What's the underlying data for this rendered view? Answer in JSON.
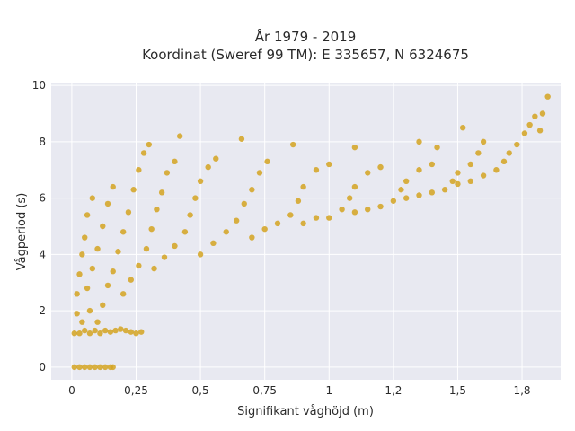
{
  "chart_data": {
    "type": "scatter",
    "title_line1": "År 1979 - 2019",
    "title_line2": "Koordinat (Sweref 99 TM): E 335657, N 6324675",
    "xlabel": "Signifikant våghöjd (m)",
    "ylabel": "Vågperiod (s)",
    "xlim": [
      -0.08,
      1.9
    ],
    "ylim": [
      -0.45,
      10.1
    ],
    "x_ticks": [
      {
        "value": 0,
        "label": "0"
      },
      {
        "value": 0.25,
        "label": "0,25"
      },
      {
        "value": 0.5,
        "label": "0,5"
      },
      {
        "value": 0.75,
        "label": "0,75"
      },
      {
        "value": 1.0,
        "label": "1"
      },
      {
        "value": 1.25,
        "label": "1,2"
      },
      {
        "value": 1.5,
        "label": "1,5"
      },
      {
        "value": 1.75,
        "label": "1,8"
      }
    ],
    "y_ticks": [
      {
        "value": 0,
        "label": "0"
      },
      {
        "value": 2,
        "label": "2"
      },
      {
        "value": 4,
        "label": "4"
      },
      {
        "value": 6,
        "label": "6"
      },
      {
        "value": 8,
        "label": "8"
      },
      {
        "value": 10,
        "label": "10"
      }
    ],
    "grid": true,
    "colors": {
      "background": "#e8e9f1",
      "grid": "#ffffff",
      "marker": "#d4a321"
    },
    "series": [
      {
        "points": [
          [
            0.01,
            0.0
          ],
          [
            0.03,
            0.0
          ],
          [
            0.05,
            0.0
          ],
          [
            0.07,
            0.0
          ],
          [
            0.09,
            0.0
          ],
          [
            0.11,
            0.0
          ],
          [
            0.13,
            0.0
          ],
          [
            0.15,
            0.0
          ],
          [
            0.16,
            0.0
          ],
          [
            0.01,
            1.2
          ],
          [
            0.02,
            1.9
          ],
          [
            0.02,
            2.6
          ],
          [
            0.03,
            3.3
          ],
          [
            0.04,
            4.0
          ],
          [
            0.05,
            4.6
          ],
          [
            0.06,
            5.4
          ],
          [
            0.08,
            6.0
          ],
          [
            0.03,
            1.2
          ],
          [
            0.05,
            1.3
          ],
          [
            0.07,
            1.2
          ],
          [
            0.09,
            1.3
          ],
          [
            0.11,
            1.2
          ],
          [
            0.13,
            1.3
          ],
          [
            0.15,
            1.25
          ],
          [
            0.17,
            1.3
          ],
          [
            0.19,
            1.35
          ],
          [
            0.21,
            1.3
          ],
          [
            0.23,
            1.25
          ],
          [
            0.25,
            1.2
          ],
          [
            0.27,
            1.25
          ],
          [
            0.04,
            1.6
          ],
          [
            0.07,
            2.0
          ],
          [
            0.06,
            2.8
          ],
          [
            0.08,
            3.5
          ],
          [
            0.1,
            4.2
          ],
          [
            0.12,
            5.0
          ],
          [
            0.14,
            5.8
          ],
          [
            0.16,
            6.4
          ],
          [
            0.1,
            1.6
          ],
          [
            0.12,
            2.2
          ],
          [
            0.14,
            2.9
          ],
          [
            0.16,
            3.4
          ],
          [
            0.18,
            4.1
          ],
          [
            0.2,
            4.8
          ],
          [
            0.22,
            5.5
          ],
          [
            0.24,
            6.3
          ],
          [
            0.26,
            7.0
          ],
          [
            0.28,
            7.6
          ],
          [
            0.3,
            7.9
          ],
          [
            0.2,
            2.6
          ],
          [
            0.23,
            3.1
          ],
          [
            0.26,
            3.6
          ],
          [
            0.29,
            4.2
          ],
          [
            0.31,
            4.9
          ],
          [
            0.33,
            5.6
          ],
          [
            0.35,
            6.2
          ],
          [
            0.37,
            6.9
          ],
          [
            0.4,
            7.3
          ],
          [
            0.42,
            8.2
          ],
          [
            0.32,
            3.5
          ],
          [
            0.36,
            3.9
          ],
          [
            0.4,
            4.3
          ],
          [
            0.44,
            4.8
          ],
          [
            0.46,
            5.4
          ],
          [
            0.48,
            6.0
          ],
          [
            0.5,
            6.6
          ],
          [
            0.53,
            7.1
          ],
          [
            0.56,
            7.4
          ],
          [
            0.5,
            4.0
          ],
          [
            0.55,
            4.4
          ],
          [
            0.6,
            4.8
          ],
          [
            0.64,
            5.2
          ],
          [
            0.67,
            5.8
          ],
          [
            0.7,
            6.3
          ],
          [
            0.73,
            6.9
          ],
          [
            0.76,
            7.3
          ],
          [
            0.66,
            8.1
          ],
          [
            0.7,
            4.6
          ],
          [
            0.75,
            4.9
          ],
          [
            0.8,
            5.1
          ],
          [
            0.85,
            5.4
          ],
          [
            0.88,
            5.9
          ],
          [
            0.9,
            6.4
          ],
          [
            0.95,
            7.0
          ],
          [
            1.0,
            7.2
          ],
          [
            0.86,
            7.9
          ],
          [
            0.9,
            5.1
          ],
          [
            0.95,
            5.3
          ],
          [
            1.0,
            5.3
          ],
          [
            1.05,
            5.6
          ],
          [
            1.08,
            6.0
          ],
          [
            1.1,
            6.4
          ],
          [
            1.15,
            6.9
          ],
          [
            1.2,
            7.1
          ],
          [
            1.1,
            7.8
          ],
          [
            1.1,
            5.5
          ],
          [
            1.15,
            5.6
          ],
          [
            1.2,
            5.7
          ],
          [
            1.25,
            5.9
          ],
          [
            1.28,
            6.3
          ],
          [
            1.3,
            6.6
          ],
          [
            1.35,
            7.0
          ],
          [
            1.4,
            7.2
          ],
          [
            1.42,
            7.8
          ],
          [
            1.35,
            8.0
          ],
          [
            1.3,
            6.0
          ],
          [
            1.35,
            6.1
          ],
          [
            1.4,
            6.2
          ],
          [
            1.45,
            6.3
          ],
          [
            1.48,
            6.6
          ],
          [
            1.5,
            6.9
          ],
          [
            1.55,
            7.2
          ],
          [
            1.58,
            7.6
          ],
          [
            1.6,
            8.0
          ],
          [
            1.52,
            8.5
          ],
          [
            1.5,
            6.5
          ],
          [
            1.55,
            6.6
          ],
          [
            1.6,
            6.8
          ],
          [
            1.65,
            7.0
          ],
          [
            1.68,
            7.3
          ],
          [
            1.7,
            7.6
          ],
          [
            1.73,
            7.9
          ],
          [
            1.76,
            8.3
          ],
          [
            1.78,
            8.6
          ],
          [
            1.8,
            8.9
          ],
          [
            1.83,
            9.0
          ],
          [
            1.85,
            9.6
          ],
          [
            1.82,
            8.4
          ]
        ]
      }
    ]
  }
}
